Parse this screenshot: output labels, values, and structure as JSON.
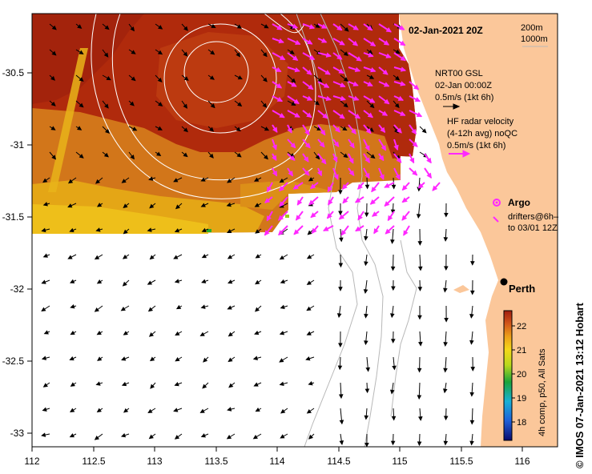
{
  "title": "02-Jan-2021 20Z",
  "isobath_legend": [
    "200m",
    "1000m"
  ],
  "gsl_legend": {
    "line1": "NRT00 GSL",
    "line2": "02-Jan 00:00Z",
    "line3": "0.5m/s (1kt 6h)"
  },
  "hf_radar_legend": {
    "line1": "HF radar velocity",
    "line2": "(4-12h avg) noQC",
    "line3": "0.5m/s (1kt 6h)"
  },
  "argo_label": "Argo",
  "drifters_label": [
    "drifters@6h–",
    "to 03/01 12Z"
  ],
  "city_label": "Perth",
  "credit": "© IMOS 07-Jan-2021 13:12 Hobart",
  "colorbar": {
    "label": "4h comp, p50, All Sats",
    "ticks": [
      "22",
      "21",
      "20",
      "19",
      "18"
    ],
    "range": [
      17.5,
      22.5
    ]
  },
  "axes": {
    "x_ticks": [
      "112",
      "112.5",
      "113",
      "113.5",
      "114",
      "114.5",
      "115",
      "115.5",
      "116"
    ],
    "y_ticks": [
      "-30.5",
      "-31",
      "-31.5",
      "-32",
      "-32.5",
      "-33"
    ],
    "lon_range": [
      112,
      116.3
    ],
    "lat_range": [
      -33.2,
      -30.1
    ]
  },
  "colors": {
    "sst_dark": "#b02a0c",
    "sst_mid": "#d2761a",
    "sst_warm": "#e4a616",
    "land": "#fbc79a",
    "radar_arrows": "#ff28ff",
    "gsl_arrows": "#000000",
    "contours": "#ffffff",
    "isobaths": "#b8b8b8"
  }
}
